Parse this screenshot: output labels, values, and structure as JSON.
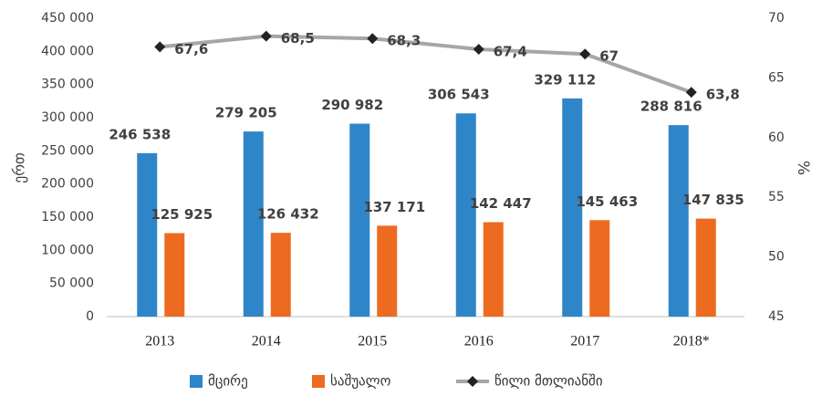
{
  "chart_data": {
    "type": "bar",
    "y_label": "ერთ",
    "y2_label": "%",
    "categories": [
      "2013",
      "2014",
      "2015",
      "2016",
      "2017",
      "2018*"
    ],
    "series": [
      {
        "name": "მცირე",
        "color": "#2e86c9",
        "values": [
          246538,
          279205,
          290982,
          306543,
          329112,
          288816
        ],
        "value_labels": [
          "246 538",
          "279 205",
          "290 982",
          "306 543",
          "329 112",
          "288 816"
        ]
      },
      {
        "name": "საშუალო",
        "color": "#ed6b21",
        "values": [
          125925,
          126432,
          137171,
          142447,
          145463,
          147835
        ],
        "value_labels": [
          "125 925",
          "126 432",
          "137 171",
          "142 447",
          "145 463",
          "147 835"
        ]
      },
      {
        "name": "წილი მთლიანში",
        "color": "#a6a6a6",
        "type": "line",
        "axis": "y2",
        "values": [
          67.6,
          68.5,
          68.3,
          67.4,
          67,
          63.8
        ],
        "value_labels": [
          "67,6",
          "68,5",
          "68,3",
          "67,4",
          "67",
          "63,8"
        ]
      }
    ],
    "ylim": [
      0,
      450000
    ],
    "yticks": [
      0,
      {
        "value": 50000,
        "label": "50 000"
      },
      {
        "value": 100000,
        "label": "100 000"
      },
      {
        "value": 150000,
        "label": "150 000"
      },
      {
        "value": 200000,
        "label": "200 000"
      },
      {
        "value": 250000,
        "label": "250 000"
      },
      {
        "value": 300000,
        "label": "300 000"
      },
      {
        "value": 350000,
        "label": "350 000"
      },
      {
        "value": 400000,
        "label": "400 000"
      },
      {
        "value": 450000,
        "label": "450 000"
      }
    ],
    "y2lim": [
      45,
      70
    ],
    "y2ticks": [
      45,
      50,
      55,
      60,
      65,
      70
    ],
    "grid": false,
    "legend": "bottom"
  }
}
